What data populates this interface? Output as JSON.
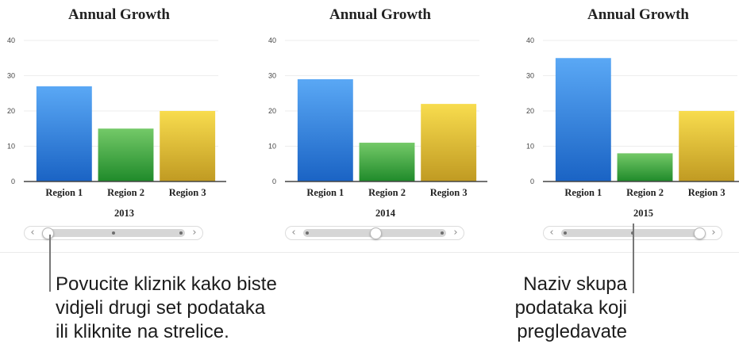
{
  "colors": {
    "region1": [
      "#5aa8f5",
      "#1a63c4"
    ],
    "region2": [
      "#74c968",
      "#1f8a2a"
    ],
    "region3": [
      "#f8dc4e",
      "#c09a22"
    ],
    "axis": "#444444",
    "gridline": "#ededed"
  },
  "chart_data": [
    {
      "type": "bar",
      "title": "Annual Growth",
      "categories": [
        "Region 1",
        "Region 2",
        "Region 3"
      ],
      "values": [
        27,
        15,
        20
      ],
      "dataset_label": "2013",
      "ylim": [
        0,
        40
      ],
      "yticks": [
        "0",
        "10",
        "20",
        "30",
        "40"
      ],
      "grid": true,
      "slider": {
        "position": 0.0
      }
    },
    {
      "type": "bar",
      "title": "Annual Growth",
      "categories": [
        "Region 1",
        "Region 2",
        "Region 3"
      ],
      "values": [
        29,
        11,
        22
      ],
      "dataset_label": "2014",
      "ylim": [
        0,
        40
      ],
      "yticks": [
        "0",
        "10",
        "20",
        "30",
        "40"
      ],
      "grid": true,
      "slider": {
        "position": 0.5
      }
    },
    {
      "type": "bar",
      "title": "Annual Growth",
      "categories": [
        "Region 1",
        "Region 2",
        "Region 3"
      ],
      "values": [
        35,
        8,
        20
      ],
      "dataset_label": "2015",
      "ylim": [
        0,
        40
      ],
      "yticks": [
        "0",
        "10",
        "20",
        "30",
        "40"
      ],
      "grid": true,
      "slider": {
        "position": 1.0
      }
    }
  ],
  "slider_arrows": {
    "left": "‹",
    "right": "›"
  },
  "callouts": {
    "slider": "Povucite kliznik kako biste\nvidjeli drugi set podataka\nili kliknite na strelice.",
    "dataset_name": "Naziv skupa\npodataka koji\npregledavate"
  }
}
